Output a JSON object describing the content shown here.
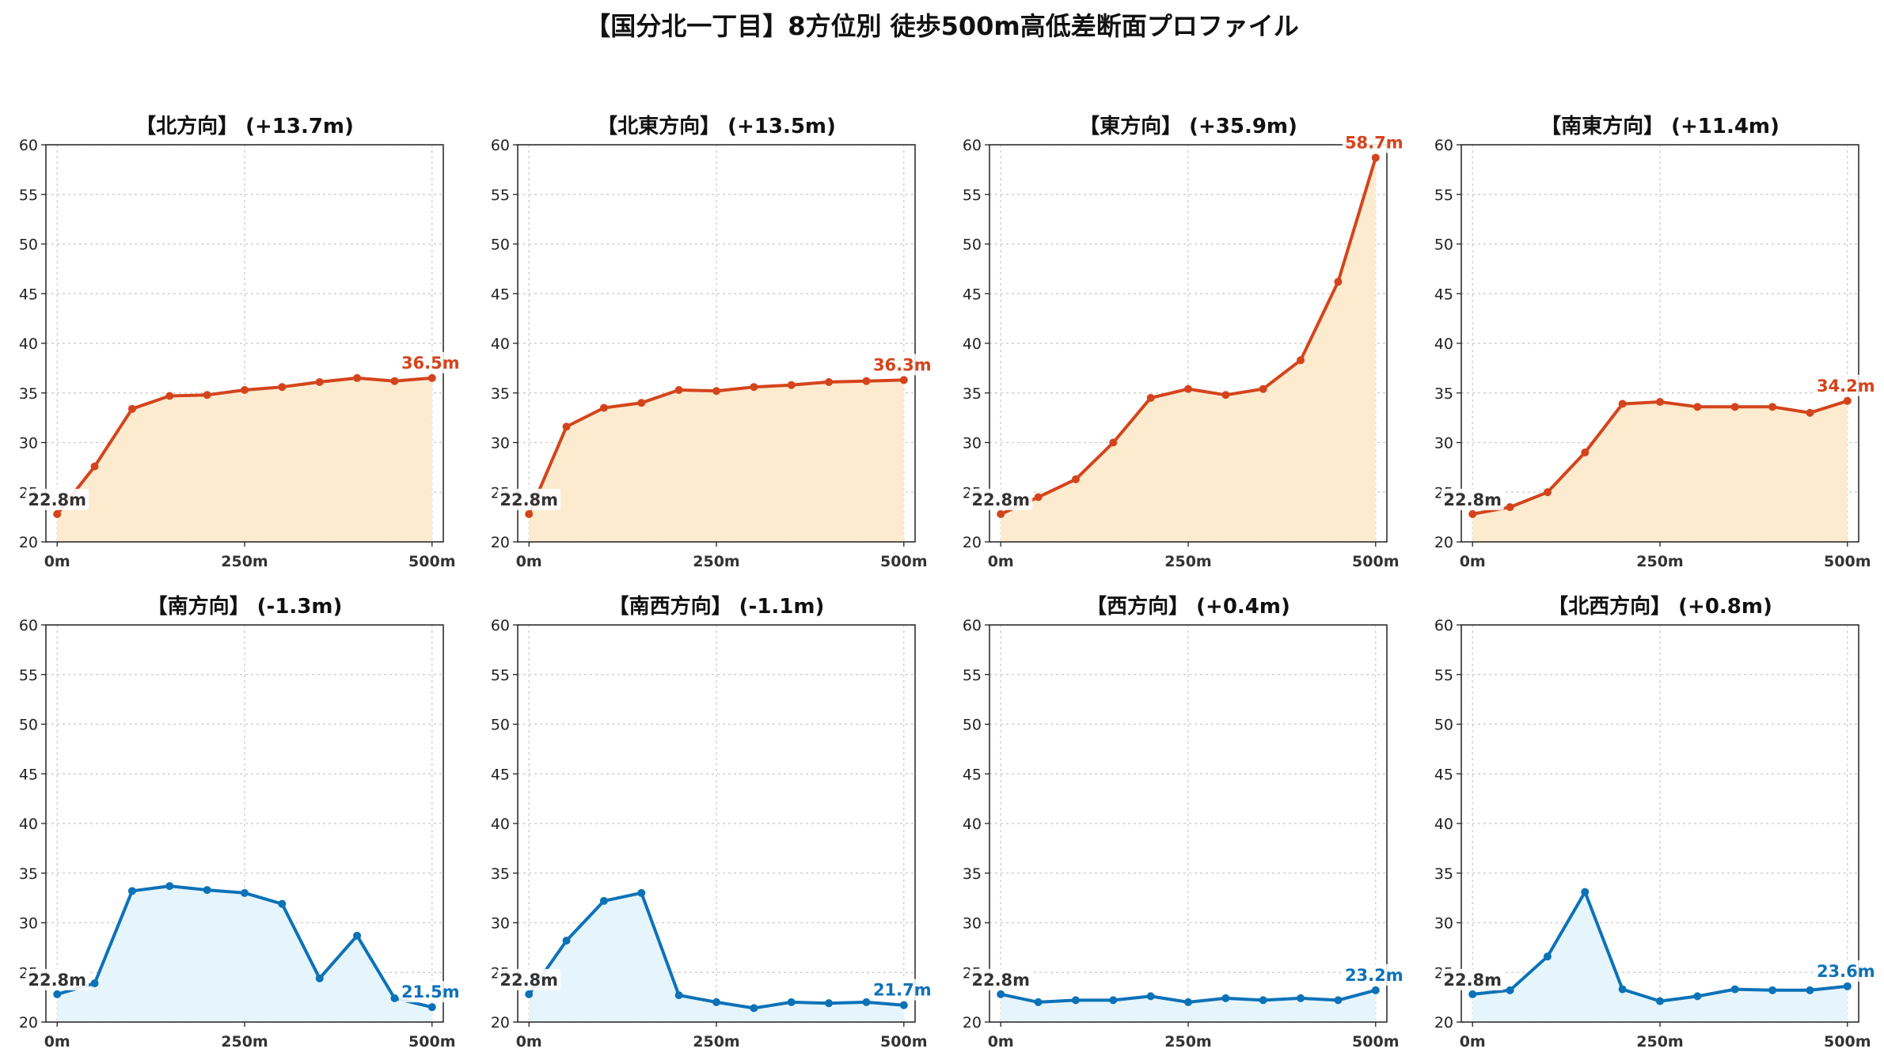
{
  "title": "【国分北一丁目】8方位別 徒歩500m高低差断面プロファイル",
  "colors": {
    "up_line": "#d4441c",
    "up_fill": "#fdebd0",
    "down_line": "#0c72b8",
    "down_fill": "#e6f5fb"
  },
  "chart_data": [
    {
      "type": "area",
      "title": "【北方向】 (+13.7m)",
      "trend": "up",
      "x": [
        0,
        50,
        100,
        150,
        200,
        250,
        300,
        350,
        400,
        450,
        500
      ],
      "values": [
        22.8,
        27.6,
        33.4,
        34.7,
        34.8,
        35.3,
        35.6,
        36.1,
        36.5,
        36.2,
        36.5
      ],
      "start_label": "22.8m",
      "end_label": "36.5m",
      "ylim": [
        20,
        60
      ],
      "yticks": [
        20,
        25,
        30,
        35,
        40,
        45,
        50,
        55,
        60
      ],
      "xticks": [
        {
          "value": 0,
          "label": "0m"
        },
        {
          "value": 250,
          "label": "250m"
        },
        {
          "value": 500,
          "label": "500m"
        }
      ],
      "grid": true
    },
    {
      "type": "area",
      "title": "【北東方向】 (+13.5m)",
      "trend": "up",
      "x": [
        0,
        50,
        100,
        150,
        200,
        250,
        300,
        350,
        400,
        450,
        500
      ],
      "values": [
        22.8,
        31.6,
        33.5,
        34.0,
        35.3,
        35.2,
        35.6,
        35.8,
        36.1,
        36.2,
        36.3
      ],
      "start_label": "22.8m",
      "end_label": "36.3m",
      "ylim": [
        20,
        60
      ],
      "yticks": [
        20,
        25,
        30,
        35,
        40,
        45,
        50,
        55,
        60
      ],
      "xticks": [
        {
          "value": 0,
          "label": "0m"
        },
        {
          "value": 250,
          "label": "250m"
        },
        {
          "value": 500,
          "label": "500m"
        }
      ],
      "grid": true
    },
    {
      "type": "area",
      "title": "【東方向】 (+35.9m)",
      "trend": "up",
      "x": [
        0,
        50,
        100,
        150,
        200,
        250,
        300,
        350,
        400,
        450,
        500
      ],
      "values": [
        22.8,
        24.5,
        26.3,
        30.0,
        34.5,
        35.4,
        34.8,
        35.4,
        38.3,
        46.2,
        58.7
      ],
      "start_label": "22.8m",
      "end_label": "58.7m",
      "ylim": [
        20,
        60
      ],
      "yticks": [
        20,
        25,
        30,
        35,
        40,
        45,
        50,
        55,
        60
      ],
      "xticks": [
        {
          "value": 0,
          "label": "0m"
        },
        {
          "value": 250,
          "label": "250m"
        },
        {
          "value": 500,
          "label": "500m"
        }
      ],
      "grid": true
    },
    {
      "type": "area",
      "title": "【南東方向】 (+11.4m)",
      "trend": "up",
      "x": [
        0,
        50,
        100,
        150,
        200,
        250,
        300,
        350,
        400,
        450,
        500
      ],
      "values": [
        22.8,
        23.5,
        25.0,
        29.0,
        33.9,
        34.1,
        33.6,
        33.6,
        33.6,
        33.0,
        34.2
      ],
      "start_label": "22.8m",
      "end_label": "34.2m",
      "ylim": [
        20,
        60
      ],
      "yticks": [
        20,
        25,
        30,
        35,
        40,
        45,
        50,
        55,
        60
      ],
      "xticks": [
        {
          "value": 0,
          "label": "0m"
        },
        {
          "value": 250,
          "label": "250m"
        },
        {
          "value": 500,
          "label": "500m"
        }
      ],
      "grid": true
    },
    {
      "type": "area",
      "title": "【南方向】 (-1.3m)",
      "trend": "down",
      "x": [
        0,
        50,
        100,
        150,
        200,
        250,
        300,
        350,
        400,
        450,
        500
      ],
      "values": [
        22.8,
        23.9,
        33.2,
        33.7,
        33.3,
        33.0,
        31.9,
        24.4,
        28.7,
        22.4,
        21.5
      ],
      "start_label": "22.8m",
      "end_label": "21.5m",
      "ylim": [
        20,
        60
      ],
      "yticks": [
        20,
        25,
        30,
        35,
        40,
        45,
        50,
        55,
        60
      ],
      "xticks": [
        {
          "value": 0,
          "label": "0m"
        },
        {
          "value": 250,
          "label": "250m"
        },
        {
          "value": 500,
          "label": "500m"
        }
      ],
      "grid": true
    },
    {
      "type": "area",
      "title": "【南西方向】 (-1.1m)",
      "trend": "down",
      "x": [
        0,
        50,
        100,
        150,
        200,
        250,
        300,
        350,
        400,
        450,
        500
      ],
      "values": [
        22.8,
        28.2,
        32.2,
        33.0,
        22.7,
        22.0,
        21.4,
        22.0,
        21.9,
        22.0,
        21.7
      ],
      "start_label": "22.8m",
      "end_label": "21.7m",
      "ylim": [
        20,
        60
      ],
      "yticks": [
        20,
        25,
        30,
        35,
        40,
        45,
        50,
        55,
        60
      ],
      "xticks": [
        {
          "value": 0,
          "label": "0m"
        },
        {
          "value": 250,
          "label": "250m"
        },
        {
          "value": 500,
          "label": "500m"
        }
      ],
      "grid": true
    },
    {
      "type": "area",
      "title": "【西方向】 (+0.4m)",
      "trend": "down",
      "x": [
        0,
        50,
        100,
        150,
        200,
        250,
        300,
        350,
        400,
        450,
        500
      ],
      "values": [
        22.8,
        22.0,
        22.2,
        22.2,
        22.6,
        22.0,
        22.4,
        22.2,
        22.4,
        22.2,
        23.2
      ],
      "start_label": "22.8m",
      "end_label": "23.2m",
      "ylim": [
        20,
        60
      ],
      "yticks": [
        20,
        25,
        30,
        35,
        40,
        45,
        50,
        55,
        60
      ],
      "xticks": [
        {
          "value": 0,
          "label": "0m"
        },
        {
          "value": 250,
          "label": "250m"
        },
        {
          "value": 500,
          "label": "500m"
        }
      ],
      "grid": true
    },
    {
      "type": "area",
      "title": "【北西方向】 (+0.8m)",
      "trend": "down",
      "x": [
        0,
        50,
        100,
        150,
        200,
        250,
        300,
        350,
        400,
        450,
        500
      ],
      "values": [
        22.8,
        23.2,
        26.6,
        33.1,
        23.3,
        22.1,
        22.6,
        23.3,
        23.2,
        23.2,
        23.6
      ],
      "start_label": "22.8m",
      "end_label": "23.6m",
      "ylim": [
        20,
        60
      ],
      "yticks": [
        20,
        25,
        30,
        35,
        40,
        45,
        50,
        55,
        60
      ],
      "xticks": [
        {
          "value": 0,
          "label": "0m"
        },
        {
          "value": 250,
          "label": "250m"
        },
        {
          "value": 500,
          "label": "500m"
        }
      ],
      "grid": true
    }
  ]
}
